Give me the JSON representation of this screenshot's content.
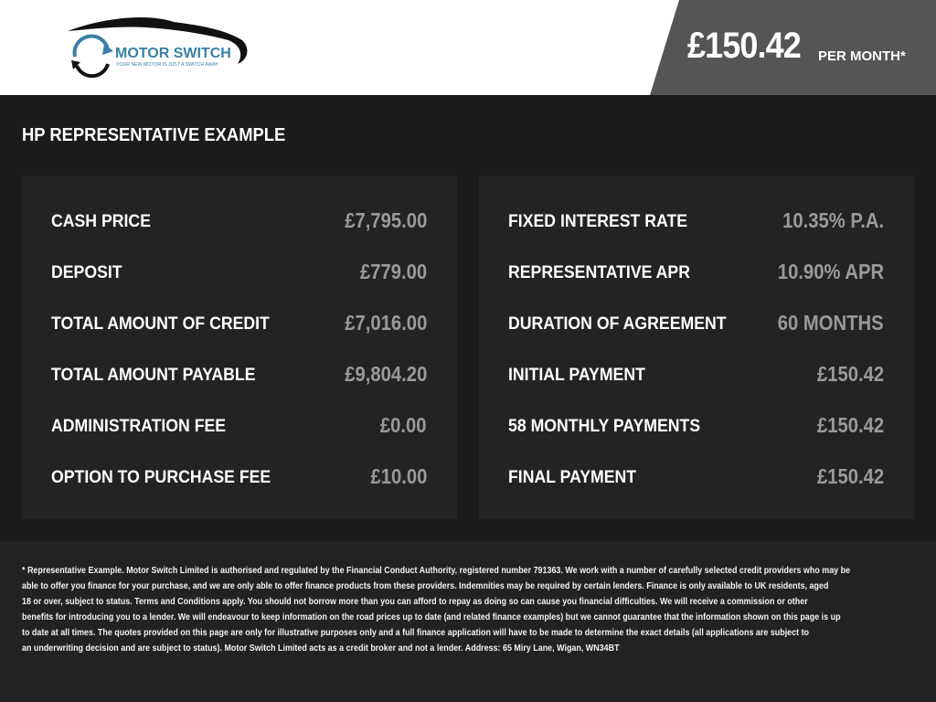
{
  "header": {
    "logo": {
      "brand": "MOTOR SWITCH",
      "tagline": "YOUR NEW MOTOR IS JUST A SWITCH AWAY"
    },
    "monthly_price": "£150.42",
    "per_month_label": "PER MONTH*"
  },
  "section_title": "HP REPRESENTATIVE EXAMPLE",
  "left_panel": [
    {
      "label": "CASH PRICE",
      "value": "£7,795.00"
    },
    {
      "label": "DEPOSIT",
      "value": "£779.00"
    },
    {
      "label": "TOTAL AMOUNT OF CREDIT",
      "value": "£7,016.00"
    },
    {
      "label": "TOTAL AMOUNT PAYABLE",
      "value": "£9,804.20"
    },
    {
      "label": "ADMINISTRATION FEE",
      "value": "£0.00"
    },
    {
      "label": "OPTION TO PURCHASE FEE",
      "value": "£10.00"
    }
  ],
  "right_panel": [
    {
      "label": "FIXED INTEREST RATE",
      "value": "10.35% P.A."
    },
    {
      "label": "REPRESENTATIVE APR",
      "value": "10.90% APR"
    },
    {
      "label": "DURATION OF AGREEMENT",
      "value": "60 MONTHS"
    },
    {
      "label": "INITIAL PAYMENT",
      "value": "£150.42"
    },
    {
      "label": "58 MONTHLY PAYMENTS",
      "value": "£150.42"
    },
    {
      "label": "FINAL PAYMENT",
      "value": "£150.42"
    }
  ],
  "disclaimer_lines": [
    "* Representative Example. Motor Switch Limited  is authorised and regulated by the Financial Conduct Authority, registered number 791363. We work with a number of carefully selected credit providers who may be",
    "able to offer you finance for your purchase, and we are only able to offer finance products from these providers. Indemnities may be required by certain lenders. Finance is only available to UK residents, aged",
    "18 or over, subject to status. Terms and Conditions apply. You should not borrow more than you can afford to repay as doing so can cause you financial difficulties. We will receive a commission or other",
    "benefits for introducing you to a lender. We will endeavour to keep information on the road prices up to date (and related finance examples) but we cannot guarantee that the information shown on this page is up",
    "to date at all times. The quotes provided on this page are only for illustrative purposes only and a full finance application will have to be made to determine the exact details (all applications are subject to",
    "an underwriting decision and are subject to status). Motor Switch Limited  acts as a credit broker and not a lender. Address: 65 Miry Lane, Wigan, WN34BT"
  ],
  "colors": {
    "logo_blue": "#3a7fa6",
    "price_box": "#555555",
    "panel": "#232323",
    "value_gray": "#9a9a9a"
  }
}
